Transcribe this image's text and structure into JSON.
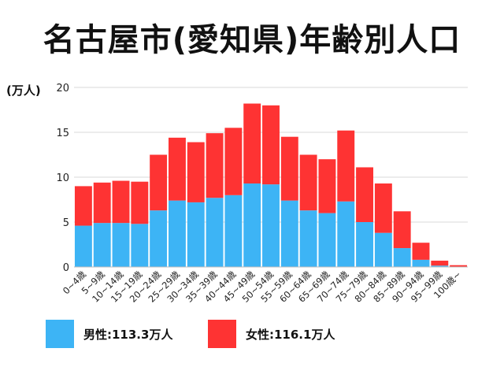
{
  "title": "名古屋市(愛知県)年齢別人口",
  "chart_data": {
    "type": "bar",
    "stacked": true,
    "ylabel": "(万人)",
    "ylim": [
      0,
      20
    ],
    "yticks": [
      0,
      5,
      10,
      15,
      20
    ],
    "grid": true,
    "legend_position": "bottom",
    "categories": [
      "0~4歳",
      "5~9歳",
      "10~14歳",
      "15~19歳",
      "20~24歳",
      "25~29歳",
      "30~34歳",
      "35~39歳",
      "40~44歳",
      "45~49歳",
      "50~54歳",
      "55~59歳",
      "60~64歳",
      "65~69歳",
      "70~74歳",
      "75~79歳",
      "80~84歳",
      "85~89歳",
      "90~94歳",
      "95~99歳",
      "100歳~"
    ],
    "series": [
      {
        "name": "男性",
        "color": "#3db4f5",
        "values": [
          4.6,
          4.9,
          4.9,
          4.8,
          6.3,
          7.4,
          7.2,
          7.7,
          8.0,
          9.3,
          9.2,
          7.4,
          6.3,
          6.0,
          7.3,
          5.0,
          3.8,
          2.1,
          0.8,
          0.15,
          0.03
        ]
      },
      {
        "name": "女性",
        "color": "#fe3333",
        "values": [
          4.4,
          4.5,
          4.7,
          4.7,
          6.2,
          7.0,
          6.7,
          7.2,
          7.5,
          8.9,
          8.8,
          7.1,
          6.2,
          6.0,
          7.9,
          6.1,
          5.5,
          4.1,
          1.9,
          0.55,
          0.17
        ]
      }
    ]
  },
  "legend": [
    {
      "label": "男性:113.3万人",
      "color": "#3db4f5"
    },
    {
      "label": "女性:116.1万人",
      "color": "#fe3333"
    }
  ]
}
